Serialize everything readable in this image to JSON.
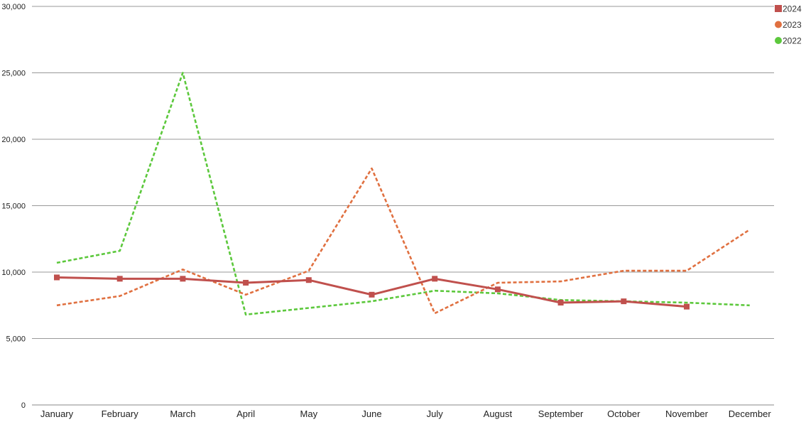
{
  "chart_data": {
    "type": "line",
    "title": "",
    "xlabel": "",
    "ylabel": "",
    "categories": [
      "January",
      "February",
      "March",
      "April",
      "May",
      "June",
      "July",
      "August",
      "September",
      "October",
      "November",
      "December"
    ],
    "ylim": [
      0,
      30000
    ],
    "yticks": [
      0,
      5000,
      10000,
      15000,
      20000,
      25000,
      30000
    ],
    "ytick_labels": [
      "0",
      "5,000",
      "10,000",
      "15,000",
      "20,000",
      "25,000",
      "30,000"
    ],
    "grid": true,
    "legend_position": "top-right",
    "series": [
      {
        "name": "2024",
        "color": "#c0504d",
        "style": "solid",
        "marker": "square",
        "values": [
          9600,
          9500,
          9500,
          9200,
          9400,
          8300,
          9500,
          8700,
          7700,
          7800,
          7400,
          null
        ]
      },
      {
        "name": "2023",
        "color": "#e07040",
        "style": "dashed",
        "marker": "circle",
        "values": [
          7500,
          8200,
          10200,
          8300,
          10100,
          17800,
          6900,
          9200,
          9300,
          10100,
          10100,
          13200
        ]
      },
      {
        "name": "2022",
        "color": "#5cc83c",
        "style": "dashed",
        "marker": "circle",
        "values": [
          10700,
          11600,
          25000,
          6800,
          7300,
          7800,
          8600,
          8400,
          7900,
          7800,
          7700,
          7500
        ]
      }
    ]
  }
}
